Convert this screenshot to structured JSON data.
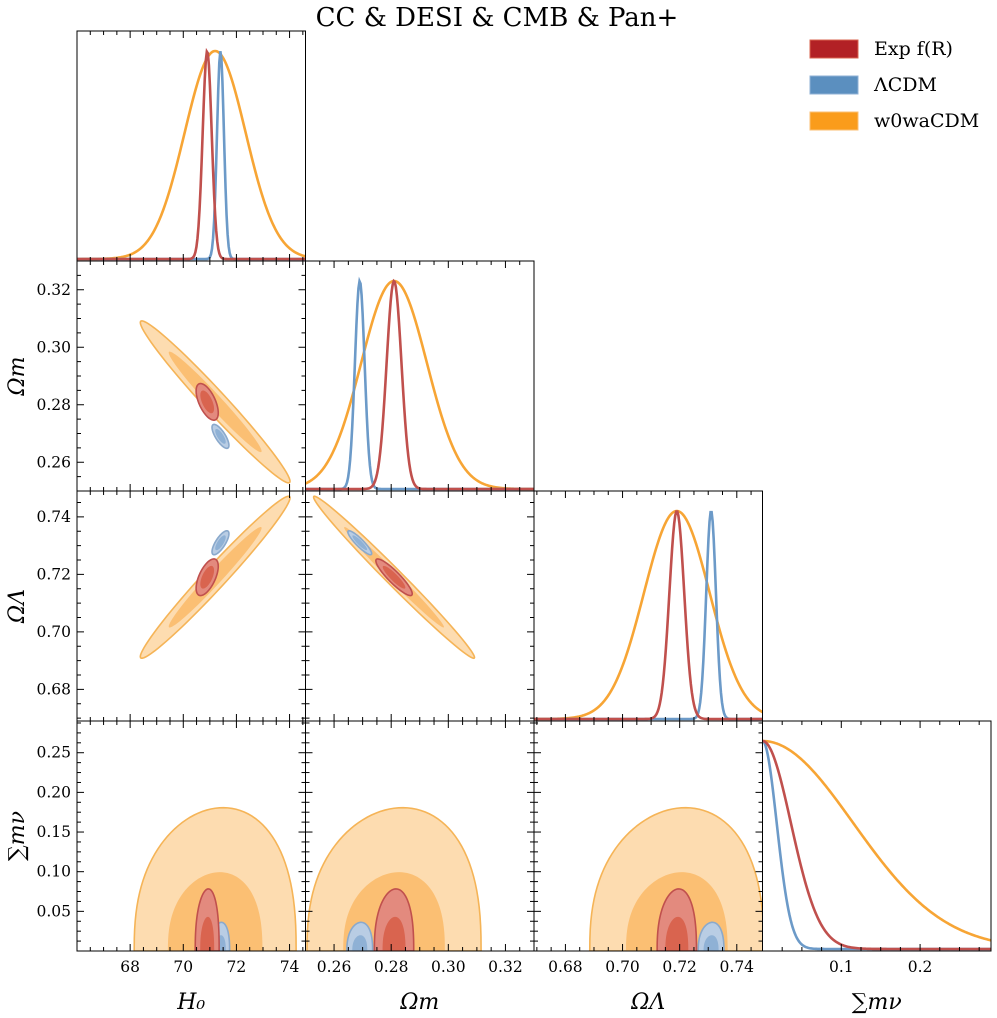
{
  "chart_data": {
    "type": "corner",
    "title": "CC & DESI & CMB & Pan+",
    "params": [
      {
        "key": "H0",
        "label": "H₀",
        "range": [
          66.0,
          74.6
        ],
        "ticks": [
          68,
          70,
          72,
          74
        ],
        "tick_labels": [
          "68",
          "70",
          "72",
          "74"
        ]
      },
      {
        "key": "Om",
        "label": "Ωm",
        "range": [
          0.25,
          0.33
        ],
        "ticks": [
          0.26,
          0.28,
          0.3,
          0.32
        ],
        "tick_labels": [
          "0.26",
          "0.28",
          "0.30",
          "0.32"
        ]
      },
      {
        "key": "OL",
        "label": "ΩΛ",
        "range": [
          0.669,
          0.749
        ],
        "ticks": [
          0.68,
          0.7,
          0.72,
          0.74
        ],
        "tick_labels": [
          "0.68",
          "0.70",
          "0.72",
          "0.74"
        ]
      },
      {
        "key": "mnu",
        "label": "∑mν",
        "range": [
          0.0,
          0.29
        ],
        "ticks": [
          0.1,
          0.2
        ],
        "tick_labels": [
          "0.1",
          "0.2"
        ],
        "y_ticks": [
          0.05,
          0.1,
          0.15,
          0.2,
          0.25
        ],
        "y_tick_labels": [
          "0.05",
          "0.10",
          "0.15",
          "0.20",
          "0.25"
        ]
      }
    ],
    "series": [
      {
        "name": "Exp f(R)",
        "color": "#b22125",
        "means": {
          "H0": 70.9,
          "Om": 0.281,
          "OL": 0.719
        },
        "sigmas": {
          "H0": 0.17,
          "Om": 0.0026,
          "OL": 0.0026
        },
        "correlations": {
          "H0-Om": -0.6,
          "H0-OL": 0.6,
          "Om-OL": -0.9,
          "mnu": 0.6
        },
        "mnu_scale": 0.036,
        "mnu_95": 0.078
      },
      {
        "name": "ΛCDM",
        "color": "#5b8fbf",
        "means": {
          "H0": 71.4,
          "Om": 0.269,
          "OL": 0.731
        },
        "sigmas": {
          "H0": 0.13,
          "Om": 0.0017,
          "OL": 0.0017
        },
        "correlations": {
          "H0-Om": -0.75,
          "H0-OL": 0.75,
          "Om-OL": -0.9,
          "mnu": 0.6
        },
        "mnu_scale": 0.018,
        "mnu_95": 0.036
      },
      {
        "name": "w0waCDM",
        "color": "#fa9c1b",
        "means": {
          "H0": 71.2,
          "Om": 0.281,
          "OL": 0.719
        },
        "sigmas": {
          "H0": 1.15,
          "Om": 0.0115,
          "OL": 0.0115
        },
        "correlations": {
          "H0-Om": -0.98,
          "H0-OL": 0.98,
          "Om-OL": -0.99,
          "mnu": 0.0
        },
        "mnu_scale": 0.115,
        "mnu_95": 0.18
      }
    ],
    "legend": {
      "entries": [
        "Exp f(R)",
        "ΛCDM",
        "w0waCDM"
      ],
      "position": "top-right"
    }
  }
}
